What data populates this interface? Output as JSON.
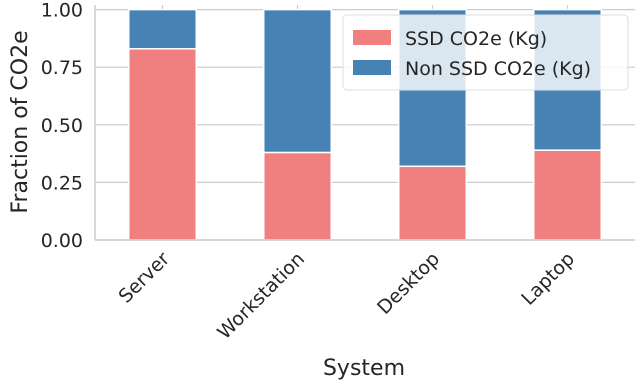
{
  "chart_data": {
    "type": "bar",
    "stacked": true,
    "categories": [
      "Server",
      "Workstation",
      "Desktop",
      "Laptop"
    ],
    "series": [
      {
        "name": "SSD CO2e (Kg)",
        "color": "#f08080",
        "values": [
          0.83,
          0.38,
          0.32,
          0.39
        ]
      },
      {
        "name": "Non SSD CO2e (Kg)",
        "color": "#4682b4",
        "values": [
          0.17,
          0.62,
          0.68,
          0.61
        ]
      }
    ],
    "xlabel": "System",
    "ylabel": "Fraction of CO2e",
    "ylim": [
      0,
      1.02
    ],
    "yticks": [
      0,
      0.25,
      0.5,
      0.75,
      1.0
    ],
    "ytick_labels": [
      "0.00",
      "0.25",
      "0.50",
      "0.75",
      "1.00"
    ],
    "grid": true,
    "legend_position": "top-right"
  }
}
